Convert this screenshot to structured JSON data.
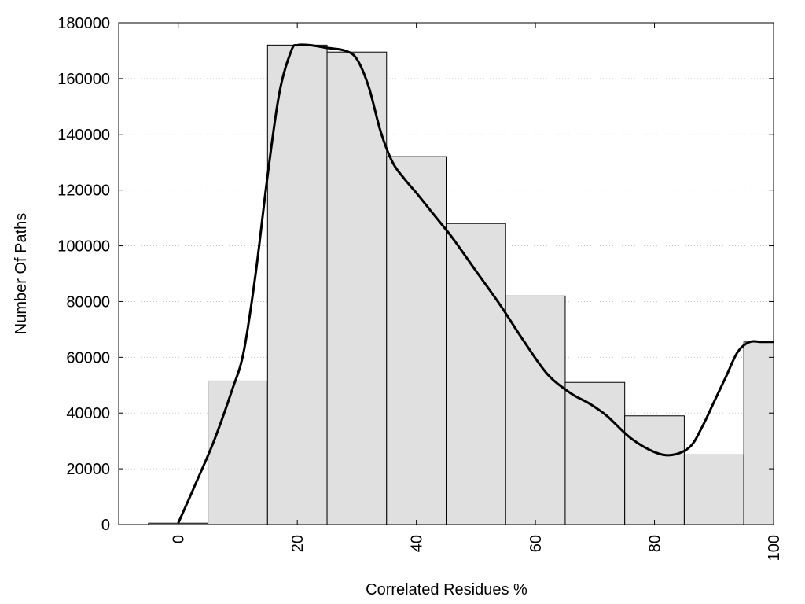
{
  "chart_data": {
    "type": "bar",
    "title": "",
    "xlabel": "Correlated Residues %",
    "ylabel": "Number Of Paths",
    "xlim": [
      -10,
      100
    ],
    "ylim": [
      0,
      180000
    ],
    "x_ticks": [
      0,
      20,
      40,
      60,
      80,
      100
    ],
    "y_ticks": [
      0,
      20000,
      40000,
      60000,
      80000,
      100000,
      120000,
      140000,
      160000,
      180000
    ],
    "grid": "horizontal dotted",
    "bar_fill": "#e0e0e0",
    "bar_stroke": "#000000",
    "curve_color": "#000000",
    "bins": [
      {
        "center": 0,
        "value": 500
      },
      {
        "center": 10,
        "value": 51500
      },
      {
        "center": 20,
        "value": 172000
      },
      {
        "center": 30,
        "value": 169500
      },
      {
        "center": 40,
        "value": 132000
      },
      {
        "center": 50,
        "value": 108000
      },
      {
        "center": 60,
        "value": 82000
      },
      {
        "center": 70,
        "value": 51000
      },
      {
        "center": 80,
        "value": 39000
      },
      {
        "center": 90,
        "value": 25000
      },
      {
        "center": 100,
        "value": 65500
      }
    ],
    "bin_width": 10,
    "curve": {
      "x": [
        0,
        3,
        6,
        9,
        11,
        13,
        15,
        17,
        19,
        20,
        22,
        25,
        28,
        30,
        32,
        34,
        36,
        38,
        40,
        43,
        46,
        50,
        54,
        58,
        62,
        66,
        69,
        72,
        76,
        80,
        83,
        86,
        88,
        90,
        92,
        94,
        96,
        98,
        100
      ],
      "y": [
        500,
        15000,
        30000,
        48000,
        62000,
        90000,
        125000,
        155000,
        170000,
        172000,
        172000,
        171000,
        170000,
        167000,
        157000,
        141000,
        130000,
        124000,
        119000,
        111000,
        103000,
        91000,
        79000,
        66000,
        54000,
        47000,
        43500,
        39000,
        31000,
        26000,
        25000,
        28000,
        35000,
        44000,
        53000,
        62000,
        65500,
        65500,
        65500
      ]
    }
  }
}
